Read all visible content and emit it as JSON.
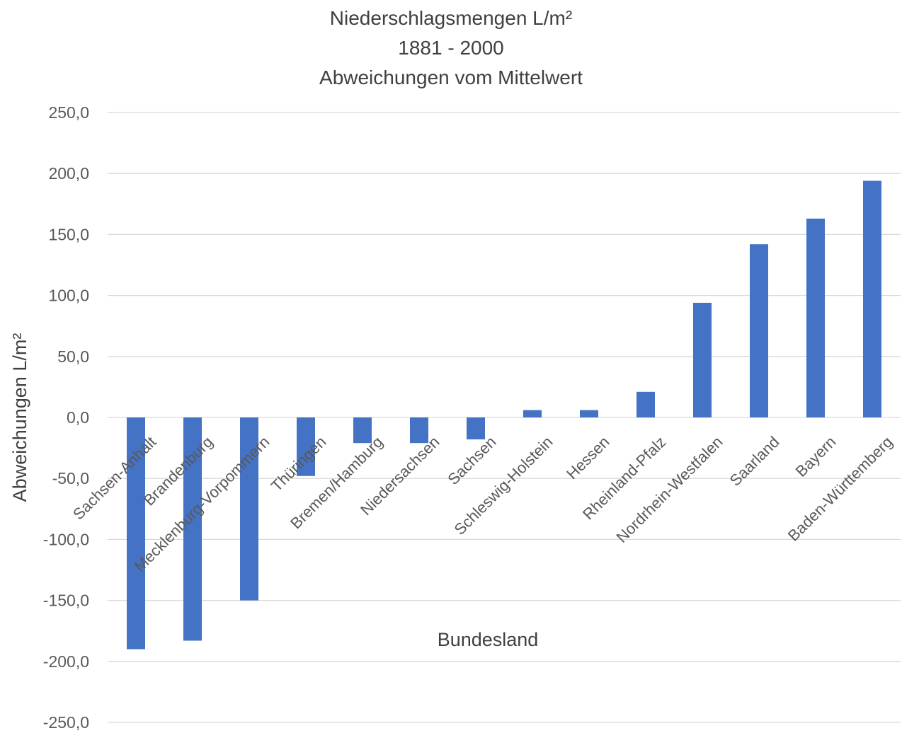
{
  "chart_data": {
    "type": "bar",
    "title_lines": [
      "Niederschlagsmengen L/m²",
      "1881 - 2000",
      "Abweichungen vom Mittelwert"
    ],
    "xlabel": "Bundesland",
    "ylabel": "Abweichungen L/m²",
    "ylim": [
      -250,
      250
    ],
    "yticks": [
      250,
      200,
      150,
      100,
      50,
      0,
      -50,
      -100,
      -150,
      -200,
      -250
    ],
    "ytick_labels": [
      "250,0",
      "200,0",
      "150,0",
      "100,0",
      "50,0",
      "0,0",
      "-50,0",
      "-100,0",
      "-150,0",
      "-200,0",
      "-250,0"
    ],
    "grid": true,
    "legend": "none",
    "bar_color": "#4472C4",
    "categories": [
      "Sachsen-Anhalt",
      "Brandenburg",
      "Mecklenburg-Vorpommern",
      "Thüringen",
      "Bremen/Hamburg",
      "Niedersachsen",
      "Sachsen",
      "Schleswig-Holstein",
      "Hessen",
      "Rheinland-Pfalz",
      "Nordrhein-Westfalen",
      "Saarland",
      "Bayern",
      "Baden-Württemberg"
    ],
    "values": [
      -190,
      -183,
      -150,
      -48,
      -21,
      -21,
      -18,
      6,
      6,
      21,
      94,
      142,
      163,
      194
    ]
  }
}
